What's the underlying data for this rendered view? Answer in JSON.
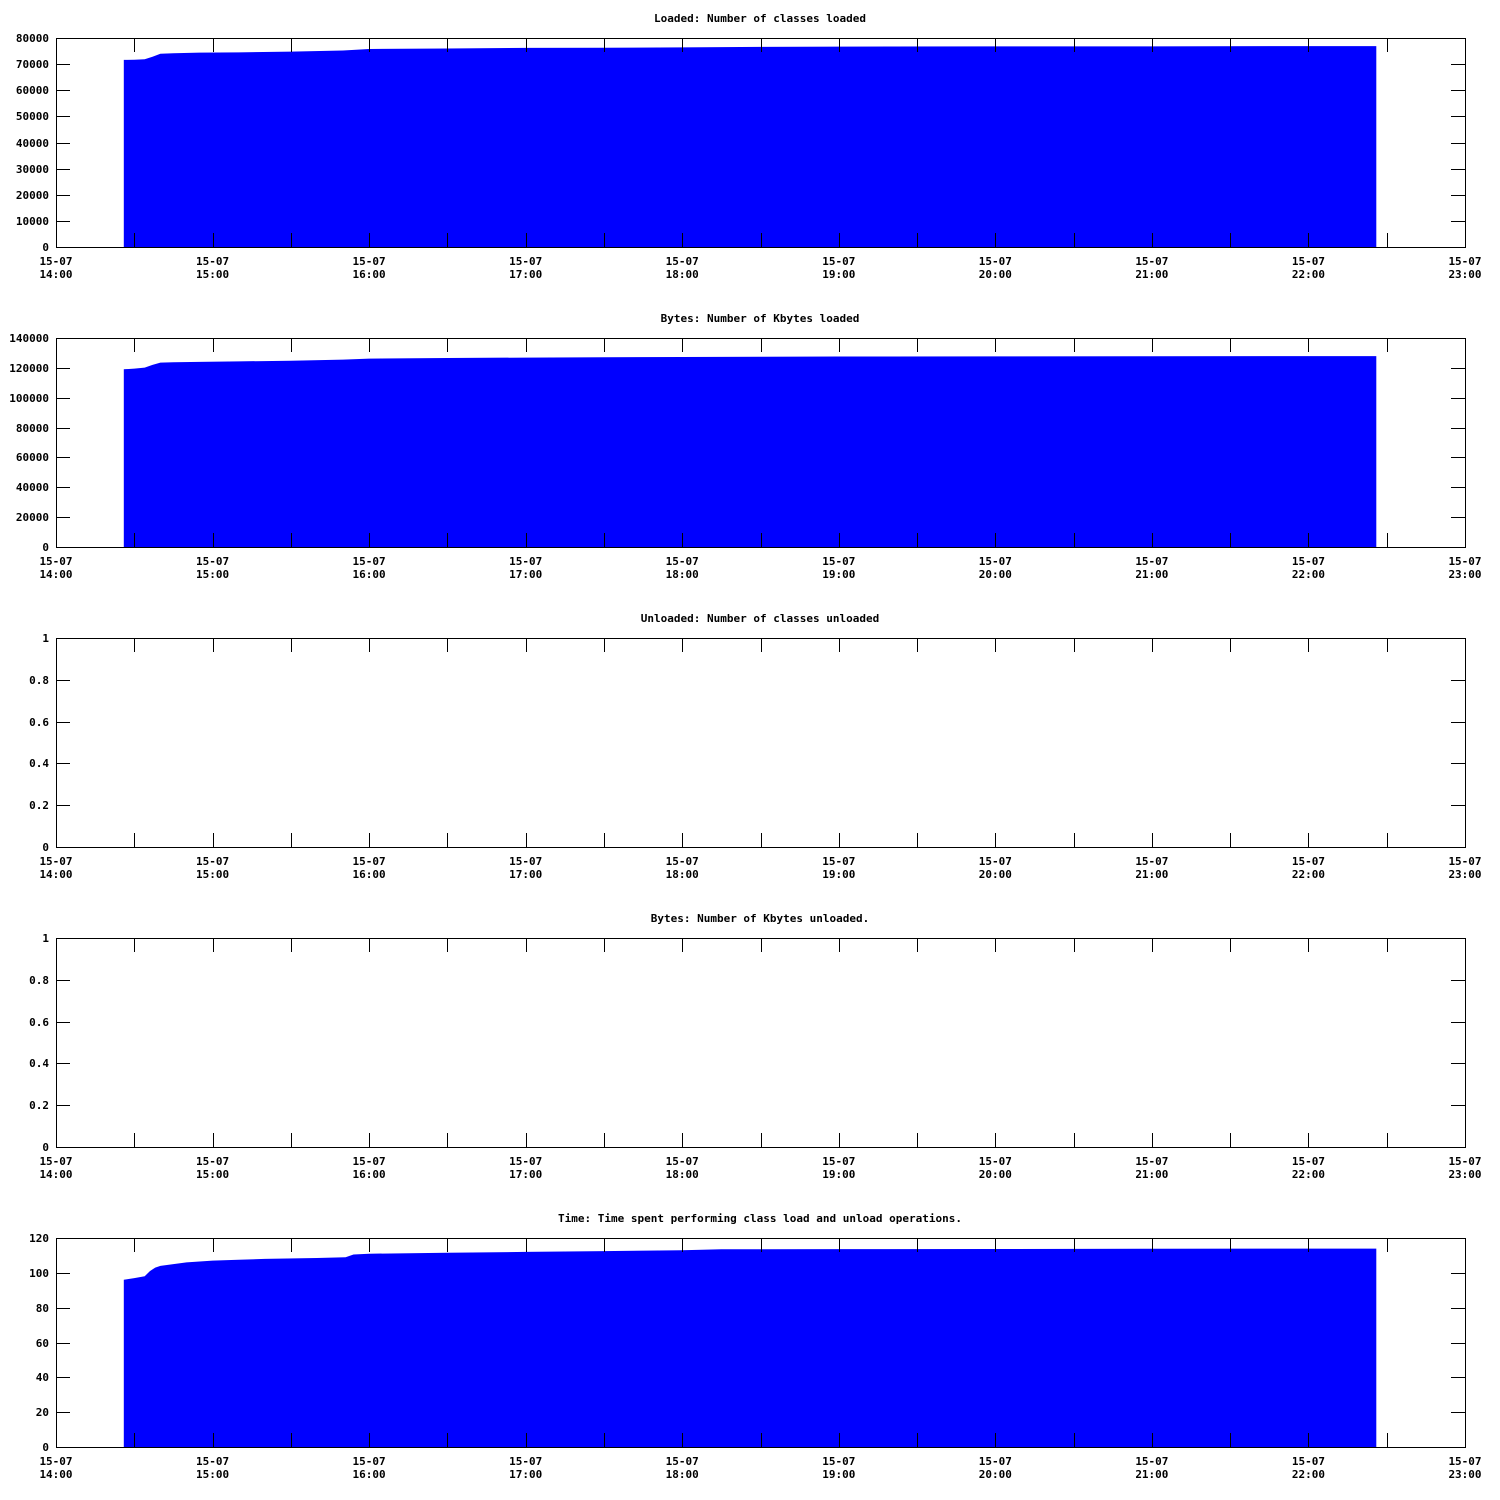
{
  "colors": {
    "fill": "#0000ff",
    "axis": "#000000",
    "background": "#ffffff"
  },
  "chart_data": [
    {
      "type": "area",
      "title": "Loaded: Number of classes loaded",
      "ylim": [
        0,
        80000
      ],
      "y_ticks": [
        "0",
        "10000",
        "20000",
        "30000",
        "40000",
        "50000",
        "60000",
        "70000",
        "80000"
      ],
      "x_ticks": [
        [
          "15-07",
          "14:00"
        ],
        [
          "15-07",
          "15:00"
        ],
        [
          "15-07",
          "16:00"
        ],
        [
          "15-07",
          "17:00"
        ],
        [
          "15-07",
          "18:00"
        ],
        [
          "15-07",
          "19:00"
        ],
        [
          "15-07",
          "20:00"
        ],
        [
          "15-07",
          "21:00"
        ],
        [
          "15-07",
          "22:00"
        ],
        [
          "15-07",
          "23:00"
        ]
      ],
      "xlim": [
        "15-07 14:00",
        "15-07 23:00"
      ],
      "grid": false,
      "series": [
        {
          "x": [
            "14:26",
            "14:30",
            "14:34",
            "14:37",
            "14:40",
            "14:45",
            "14:55",
            "15:10",
            "15:30",
            "15:50",
            "16:00",
            "16:30",
            "17:00",
            "17:30",
            "18:00",
            "18:15",
            "18:30",
            "19:00",
            "20:00",
            "21:00",
            "22:00",
            "22:26"
          ],
          "values": [
            71600,
            71700,
            71900,
            72800,
            74000,
            74200,
            74400,
            74500,
            74800,
            75200,
            75800,
            76000,
            76200,
            76300,
            76400,
            76500,
            76600,
            76700,
            76800,
            76800,
            76900,
            76900
          ]
        }
      ]
    },
    {
      "type": "area",
      "title": "Bytes: Number of Kbytes loaded",
      "ylim": [
        0,
        140000
      ],
      "y_ticks": [
        "0",
        "20000",
        "40000",
        "60000",
        "80000",
        "100000",
        "120000",
        "140000"
      ],
      "x_ticks": [
        [
          "15-07",
          "14:00"
        ],
        [
          "15-07",
          "15:00"
        ],
        [
          "15-07",
          "16:00"
        ],
        [
          "15-07",
          "17:00"
        ],
        [
          "15-07",
          "18:00"
        ],
        [
          "15-07",
          "19:00"
        ],
        [
          "15-07",
          "20:00"
        ],
        [
          "15-07",
          "21:00"
        ],
        [
          "15-07",
          "22:00"
        ],
        [
          "15-07",
          "23:00"
        ]
      ],
      "xlim": [
        "15-07 14:00",
        "15-07 23:00"
      ],
      "grid": false,
      "series": [
        {
          "x": [
            "14:26",
            "14:30",
            "14:34",
            "14:37",
            "14:40",
            "14:45",
            "14:55",
            "15:10",
            "15:30",
            "15:50",
            "16:00",
            "16:30",
            "17:00",
            "17:30",
            "18:00",
            "18:30",
            "19:00",
            "20:00",
            "21:00",
            "22:00",
            "22:26"
          ],
          "values": [
            119000,
            119500,
            120200,
            122000,
            123500,
            123800,
            124000,
            124300,
            124800,
            125500,
            126200,
            126600,
            126900,
            127100,
            127300,
            127500,
            127600,
            127700,
            127800,
            127900,
            127900
          ]
        }
      ]
    },
    {
      "type": "area",
      "title": "Unloaded: Number of classes unloaded",
      "ylim": [
        0,
        1
      ],
      "y_ticks": [
        "0",
        "0.2",
        "0.4",
        "0.6",
        "0.8",
        "1"
      ],
      "x_ticks": [
        [
          "15-07",
          "14:00"
        ],
        [
          "15-07",
          "15:00"
        ],
        [
          "15-07",
          "16:00"
        ],
        [
          "15-07",
          "17:00"
        ],
        [
          "15-07",
          "18:00"
        ],
        [
          "15-07",
          "19:00"
        ],
        [
          "15-07",
          "20:00"
        ],
        [
          "15-07",
          "21:00"
        ],
        [
          "15-07",
          "22:00"
        ],
        [
          "15-07",
          "23:00"
        ]
      ],
      "xlim": [
        "15-07 14:00",
        "15-07 23:00"
      ],
      "grid": false,
      "series": [
        {
          "x": [
            "14:26",
            "22:26"
          ],
          "values": [
            0,
            0
          ]
        }
      ]
    },
    {
      "type": "area",
      "title": "Bytes: Number of Kbytes unloaded.",
      "ylim": [
        0,
        1
      ],
      "y_ticks": [
        "0",
        "0.2",
        "0.4",
        "0.6",
        "0.8",
        "1"
      ],
      "x_ticks": [
        [
          "15-07",
          "14:00"
        ],
        [
          "15-07",
          "15:00"
        ],
        [
          "15-07",
          "16:00"
        ],
        [
          "15-07",
          "17:00"
        ],
        [
          "15-07",
          "18:00"
        ],
        [
          "15-07",
          "19:00"
        ],
        [
          "15-07",
          "20:00"
        ],
        [
          "15-07",
          "21:00"
        ],
        [
          "15-07",
          "22:00"
        ],
        [
          "15-07",
          "23:00"
        ]
      ],
      "xlim": [
        "15-07 14:00",
        "15-07 23:00"
      ],
      "grid": false,
      "series": [
        {
          "x": [
            "14:26",
            "22:26"
          ],
          "values": [
            0,
            0
          ]
        }
      ]
    },
    {
      "type": "area",
      "title": "Time: Time spent performing class load and unload operations.",
      "ylim": [
        0,
        120
      ],
      "y_ticks": [
        "0",
        "20",
        "40",
        "60",
        "80",
        "100",
        "120"
      ],
      "x_ticks": [
        [
          "15-07",
          "14:00"
        ],
        [
          "15-07",
          "15:00"
        ],
        [
          "15-07",
          "16:00"
        ],
        [
          "15-07",
          "17:00"
        ],
        [
          "15-07",
          "18:00"
        ],
        [
          "15-07",
          "19:00"
        ],
        [
          "15-07",
          "20:00"
        ],
        [
          "15-07",
          "21:00"
        ],
        [
          "15-07",
          "22:00"
        ],
        [
          "15-07",
          "23:00"
        ]
      ],
      "xlim": [
        "15-07 14:00",
        "15-07 23:00"
      ],
      "grid": false,
      "series": [
        {
          "x": [
            "14:26",
            "14:30",
            "14:34",
            "14:36",
            "14:38",
            "14:40",
            "14:45",
            "14:50",
            "15:00",
            "15:10",
            "15:20",
            "15:40",
            "15:51",
            "15:54",
            "16:00",
            "16:30",
            "17:00",
            "17:30",
            "18:00",
            "18:15",
            "19:00",
            "20:00",
            "21:00",
            "22:00",
            "22:26"
          ],
          "values": [
            96,
            97,
            98,
            101,
            103,
            104,
            105,
            106,
            107,
            107.5,
            108,
            108.5,
            109,
            110.5,
            111,
            111.5,
            112,
            112.5,
            113,
            113.5,
            113.6,
            113.7,
            113.8,
            113.9,
            113.9
          ]
        }
      ]
    }
  ]
}
